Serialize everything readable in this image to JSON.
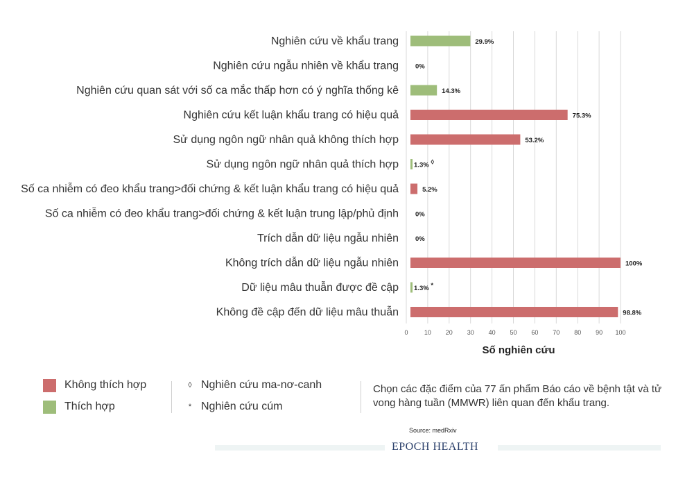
{
  "chart_data": {
    "type": "bar",
    "orientation": "horizontal",
    "categories": [
      "Nghiên cứu về khẩu trang",
      "Nghiên cứu ngẫu nhiên về khẩu trang",
      "Nghiên cứu quan sát với số ca mắc thấp hơn có ý nghĩa thống kê",
      "Nghiên cứu kết luận khẩu trang có hiệu quả",
      "Sử dụng ngôn ngữ nhân quả không thích hợp",
      "Sử dụng ngôn ngữ nhân quả thích hợp",
      "Số ca nhiễm có đeo khẩu trang>đối chứng & kết luận khẩu trang có hiệu quả",
      "Số ca nhiễm có đeo khẩu trang>đối chứng & kết luận trung lập/phủ định",
      "Trích dẫn dữ liệu ngẫu nhiên",
      "Không trích dẫn dữ liệu ngẫu nhiên",
      "Dữ liệu mâu thuẫn được đề cập",
      "Không đề cập đến dữ liệu mâu thuẫn"
    ],
    "values": [
      29.9,
      0,
      14.3,
      75.3,
      53.2,
      1.3,
      5.2,
      0,
      0,
      100,
      1.3,
      98.8
    ],
    "value_labels": [
      "29.9%",
      "0%",
      "14.3%",
      "75.3%",
      "53.2%",
      "1.3%",
      "5.2%",
      "0%",
      "0%",
      "100%",
      "1.3%",
      "98.8%"
    ],
    "label_markers": [
      "",
      "",
      "",
      "",
      "",
      "◊",
      "",
      "",
      "",
      "",
      "*",
      ""
    ],
    "bar_groups": [
      "suitable",
      "suitable",
      "suitable",
      "unsuitable",
      "unsuitable",
      "suitable",
      "unsuitable",
      "unsuitable",
      "suitable",
      "unsuitable",
      "suitable",
      "unsuitable"
    ],
    "xlabel": "Số nghiên cứu",
    "xlim": [
      0,
      100
    ],
    "xticks": [
      0,
      10,
      20,
      30,
      40,
      50,
      60,
      70,
      80,
      90,
      100
    ],
    "grid": true
  },
  "colors": {
    "unsuitable": "#cc6d6d",
    "suitable": "#9ebd7a",
    "grid": "#d9d9d9"
  },
  "legend": {
    "unsuitable_label": "Không thích hợp",
    "suitable_label": "Thích hợp",
    "diamond_symbol": "◊",
    "diamond_label": "Nghiên cứu ma-nơ-canh",
    "asterisk_symbol": "*",
    "asterisk_label": "Nghiên cứu cúm"
  },
  "note": "Chọn các đặc điểm của 77 ấn phẩm Báo cáo về bệnh tật và tử vong hàng tuần (MMWR) liên quan đến khẩu trang.",
  "source": "Source: medRxiv",
  "brand": "EPOCH HEALTH"
}
